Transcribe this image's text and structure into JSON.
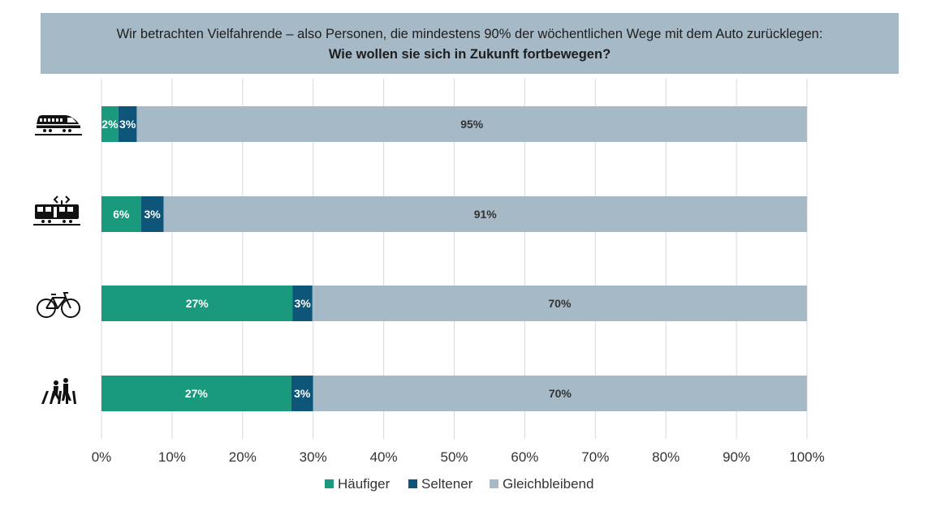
{
  "header": {
    "line1": "Wir betrachten Vielfahrende – also Personen, die mindestens 90% der wöchentlichen Wege mit dem Auto zurücklegen:",
    "line2": "Wie wollen sie sich in Zukunft fortbewegen?"
  },
  "colors": {
    "haeufiger": "#1a9a7c",
    "seltener": "#0e5679",
    "gleichbleibend": "#a6b9c6",
    "header_bg": "#a6b9c6",
    "grid": "#d9d9d9"
  },
  "chart_data": {
    "type": "bar",
    "orientation": "horizontal",
    "stacked": true,
    "categories": [
      "train-icon",
      "tram-icon",
      "bicycle-icon",
      "pedestrian-icon"
    ],
    "series": [
      {
        "name": "Häufiger",
        "values": [
          2.4,
          5.6,
          27.1,
          26.9
        ],
        "labels": [
          "2%",
          "6%",
          "27%",
          "27%"
        ],
        "label_color": "#ffffff"
      },
      {
        "name": "Seltener",
        "values": [
          2.6,
          3.2,
          2.8,
          3.1
        ],
        "labels": [
          "3%",
          "3%",
          "3%",
          "3%"
        ],
        "label_color": "#ffffff"
      },
      {
        "name": "Gleichbleibend",
        "values": [
          95,
          91.2,
          70.1,
          70
        ],
        "labels": [
          "95%",
          "91%",
          "70%",
          "70%"
        ],
        "label_color": "#333333"
      }
    ],
    "xlim": [
      0,
      100
    ],
    "xticks": [
      "0%",
      "10%",
      "20%",
      "30%",
      "40%",
      "50%",
      "60%",
      "70%",
      "80%",
      "90%",
      "100%"
    ],
    "grid": true,
    "legend": "bottom"
  }
}
